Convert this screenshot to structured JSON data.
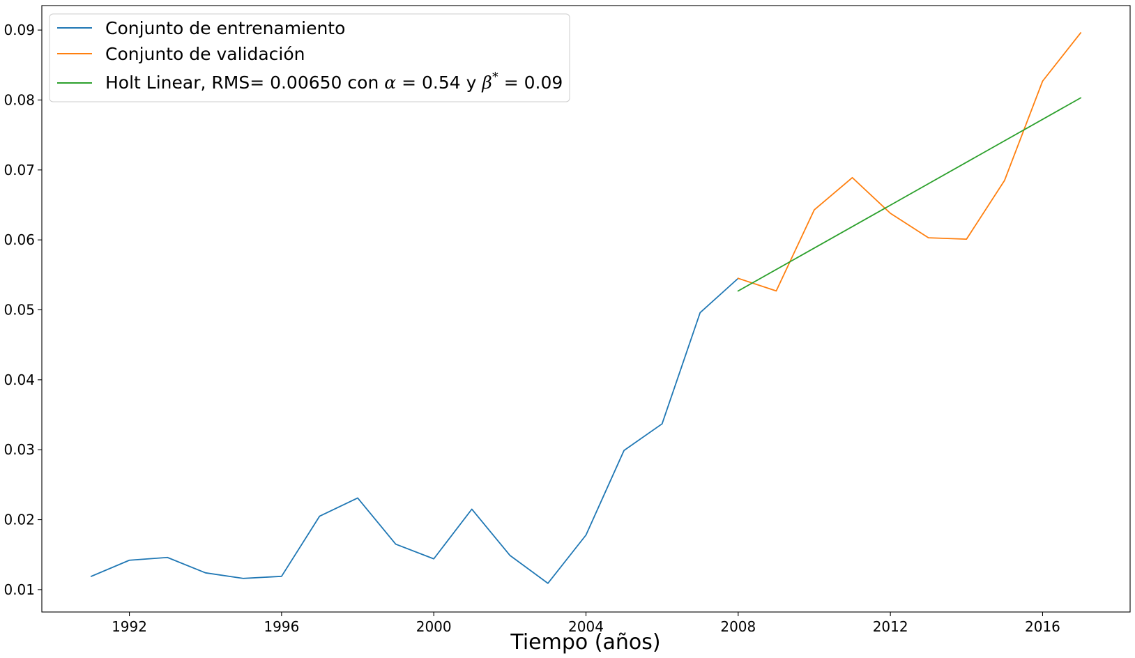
{
  "chart_data": {
    "type": "line",
    "title": "",
    "xlabel": "Tiempo (años)",
    "ylabel": "",
    "xlim": [
      1989.7,
      2018.3
    ],
    "ylim": [
      0.0068,
      0.0935
    ],
    "xticks": [
      1992,
      1996,
      2000,
      2004,
      2008,
      2012,
      2016
    ],
    "yticks": [
      0.01,
      0.02,
      0.03,
      0.04,
      0.05,
      0.06,
      0.07,
      0.08,
      0.09
    ],
    "xtick_labels": [
      "1992",
      "1996",
      "2000",
      "2004",
      "2008",
      "2012",
      "2016"
    ],
    "ytick_labels": [
      "0.01",
      "0.02",
      "0.03",
      "0.04",
      "0.05",
      "0.06",
      "0.07",
      "0.08",
      "0.09"
    ],
    "grid": false,
    "legend_position": "top-left",
    "series": [
      {
        "name": "Conjunto de entrenamiento",
        "color": "#1f77b4",
        "x": [
          1991,
          1992,
          1993,
          1994,
          1995,
          1996,
          1997,
          1998,
          1999,
          2000,
          2001,
          2002,
          2003,
          2004,
          2005,
          2006,
          2007,
          2008
        ],
        "values": [
          0.0119,
          0.0142,
          0.0146,
          0.0124,
          0.0116,
          0.0119,
          0.0205,
          0.0231,
          0.0165,
          0.0144,
          0.0215,
          0.0149,
          0.0109,
          0.0178,
          0.0299,
          0.0337,
          0.0496,
          0.0545
        ]
      },
      {
        "name": "Conjunto de validación",
        "color": "#ff7f0e",
        "x": [
          2008,
          2009,
          2010,
          2011,
          2012,
          2013,
          2014,
          2015,
          2016,
          2017
        ],
        "values": [
          0.0545,
          0.0527,
          0.0643,
          0.0689,
          0.0638,
          0.0603,
          0.0601,
          0.0685,
          0.0827,
          0.0896
        ]
      },
      {
        "name": "Holt Linear, RMS= 0.00650 con α = 0.54 y β* = 0.09",
        "color": "#2ca02c",
        "x": [
          2008,
          2017
        ],
        "values": [
          0.0527,
          0.0803
        ]
      }
    ],
    "legend": {
      "entry_1_prefix": "Holt Linear, RMS= 0.00650 con ",
      "alpha_symbol": "α",
      "alpha_value": " = 0.54",
      "connector": " y ",
      "beta_symbol": "β",
      "beta_superscript": "*",
      "beta_value": " = 0.09"
    }
  }
}
